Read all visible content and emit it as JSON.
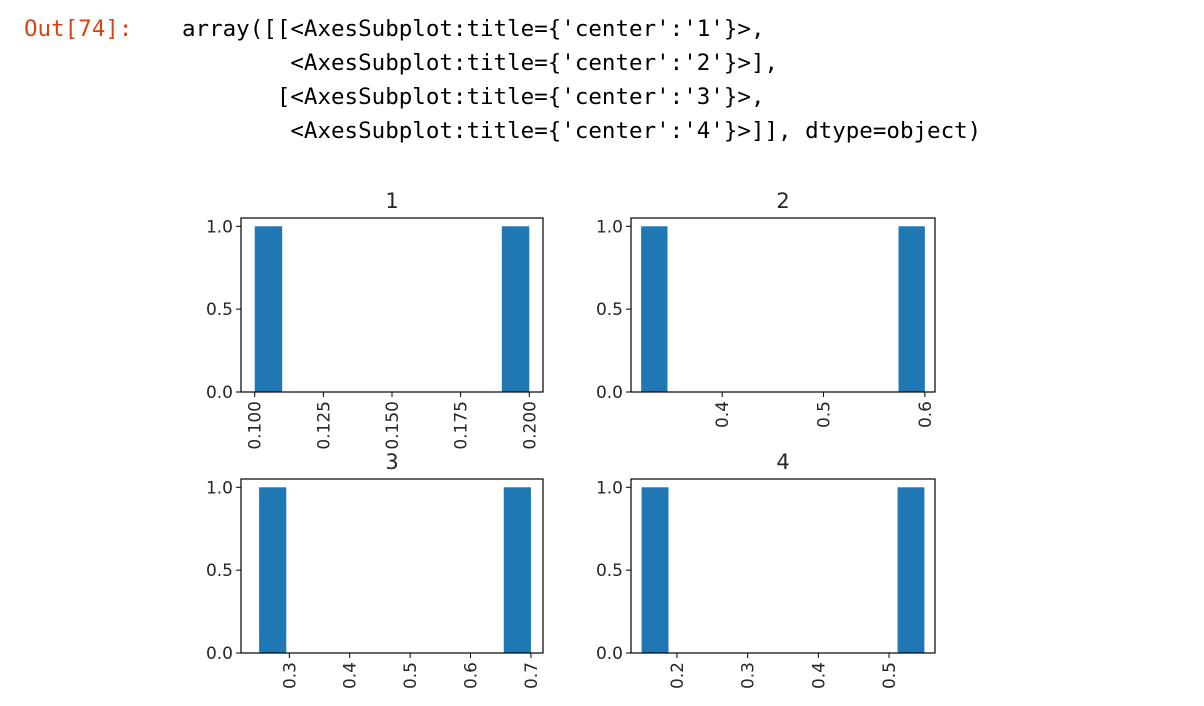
{
  "cell": {
    "prompt": "Out[74]:",
    "prompt_color": "#d84315",
    "output_lines": [
      "array([[<AxesSubplot:title={'center':'1'}>,",
      "        <AxesSubplot:title={'center':'2'}>],",
      "       [<AxesSubplot:title={'center':'3'}>,",
      "        <AxesSubplot:title={'center':'4'}>]], dtype=object)"
    ]
  },
  "chart_data": [
    {
      "type": "bar",
      "title": "1",
      "xlabel": "",
      "ylabel": "",
      "bar_color": "#1f77b4",
      "xlim": [
        0.095,
        0.205
      ],
      "ylim": [
        0,
        1.05
      ],
      "xticks": [
        0.1,
        0.125,
        0.15,
        0.175,
        0.2
      ],
      "xtick_labels": [
        "0.100",
        "0.125",
        "0.150",
        "0.175",
        "0.200"
      ],
      "yticks": [
        0.0,
        0.5,
        1.0
      ],
      "ytick_labels": [
        "0.0",
        "0.5",
        "1.0"
      ],
      "bins": [
        {
          "x0": 0.1,
          "x1": 0.11,
          "value": 1
        },
        {
          "x0": 0.19,
          "x1": 0.2,
          "value": 1
        }
      ]
    },
    {
      "type": "bar",
      "title": "2",
      "xlabel": "",
      "ylabel": "",
      "bar_color": "#1f77b4",
      "xlim": [
        0.31,
        0.61
      ],
      "ylim": [
        0,
        1.05
      ],
      "xticks": [
        0.4,
        0.5,
        0.6
      ],
      "xtick_labels": [
        "0.4",
        "0.5",
        "0.6"
      ],
      "yticks": [
        0.0,
        0.5,
        1.0
      ],
      "ytick_labels": [
        "0.0",
        "0.5",
        "1.0"
      ],
      "bins": [
        {
          "x0": 0.32,
          "x1": 0.346,
          "value": 1
        },
        {
          "x0": 0.574,
          "x1": 0.6,
          "value": 1
        }
      ]
    },
    {
      "type": "bar",
      "title": "3",
      "xlabel": "",
      "ylabel": "",
      "bar_color": "#1f77b4",
      "xlim": [
        0.22,
        0.72
      ],
      "ylim": [
        0,
        1.05
      ],
      "xticks": [
        0.3,
        0.4,
        0.5,
        0.6,
        0.7
      ],
      "xtick_labels": [
        "0.3",
        "0.4",
        "0.5",
        "0.6",
        "0.7"
      ],
      "yticks": [
        0.0,
        0.5,
        1.0
      ],
      "ytick_labels": [
        "0.0",
        "0.5",
        "1.0"
      ],
      "bins": [
        {
          "x0": 0.25,
          "x1": 0.295,
          "value": 1
        },
        {
          "x0": 0.655,
          "x1": 0.7,
          "value": 1
        }
      ]
    },
    {
      "type": "bar",
      "title": "4",
      "xlabel": "",
      "ylabel": "",
      "bar_color": "#1f77b4",
      "xlim": [
        0.135,
        0.565
      ],
      "ylim": [
        0,
        1.05
      ],
      "xticks": [
        0.2,
        0.3,
        0.4,
        0.5
      ],
      "xtick_labels": [
        "0.2",
        "0.3",
        "0.4",
        "0.5"
      ],
      "yticks": [
        0.0,
        0.5,
        1.0
      ],
      "ytick_labels": [
        "0.0",
        "0.5",
        "1.0"
      ],
      "bins": [
        {
          "x0": 0.15,
          "x1": 0.188,
          "value": 1
        },
        {
          "x0": 0.512,
          "x1": 0.55,
          "value": 1
        }
      ]
    }
  ]
}
